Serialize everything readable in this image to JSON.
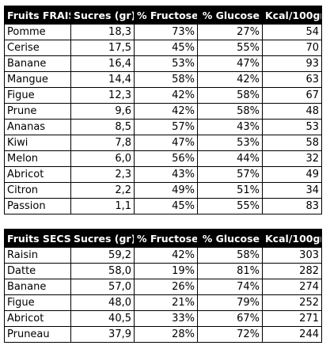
{
  "fresh": {
    "headers": [
      "Fruits FRAIS",
      "Sucres (gr)",
      "% Fructose",
      "% Glucose",
      "Kcal/100gr"
    ],
    "rows": [
      [
        "Pomme",
        "18,3",
        "73%",
        "27%",
        "54"
      ],
      [
        "Cerise",
        "17,5",
        "45%",
        "55%",
        "70"
      ],
      [
        "Banane",
        "16,4",
        "53%",
        "47%",
        "93"
      ],
      [
        "Mangue",
        "14,4",
        "58%",
        "42%",
        "63"
      ],
      [
        "Figue",
        "12,3",
        "42%",
        "58%",
        "67"
      ],
      [
        "Prune",
        "9,6",
        "42%",
        "58%",
        "48"
      ],
      [
        "Ananas",
        "8,5",
        "57%",
        "43%",
        "53"
      ],
      [
        "Kiwi",
        "7,8",
        "47%",
        "53%",
        "58"
      ],
      [
        "Melon",
        "6,0",
        "56%",
        "44%",
        "32"
      ],
      [
        "Abricot",
        "2,3",
        "43%",
        "57%",
        "49"
      ],
      [
        "Citron",
        "2,2",
        "49%",
        "51%",
        "34"
      ],
      [
        "Passion",
        "1,1",
        "45%",
        "55%",
        "83"
      ]
    ]
  },
  "dried": {
    "headers": [
      "Fruits SECS",
      "Sucres (gr)",
      "% Fructose",
      "% Glucose",
      "Kcal/100gr"
    ],
    "rows": [
      [
        "Raisin",
        "59,2",
        "42%",
        "58%",
        "303"
      ],
      [
        "Datte",
        "58,0",
        "19%",
        "81%",
        "282"
      ],
      [
        "Banane",
        "57,0",
        "26%",
        "74%",
        "274"
      ],
      [
        "Figue",
        "48,0",
        "21%",
        "79%",
        "252"
      ],
      [
        "Abricot",
        "40,5",
        "33%",
        "67%",
        "271"
      ],
      [
        "Pruneau",
        "37,9",
        "28%",
        "72%",
        "244"
      ]
    ]
  },
  "colors": {
    "header_background": "#000000",
    "header_text": "#ffffff",
    "border": "#000000"
  }
}
